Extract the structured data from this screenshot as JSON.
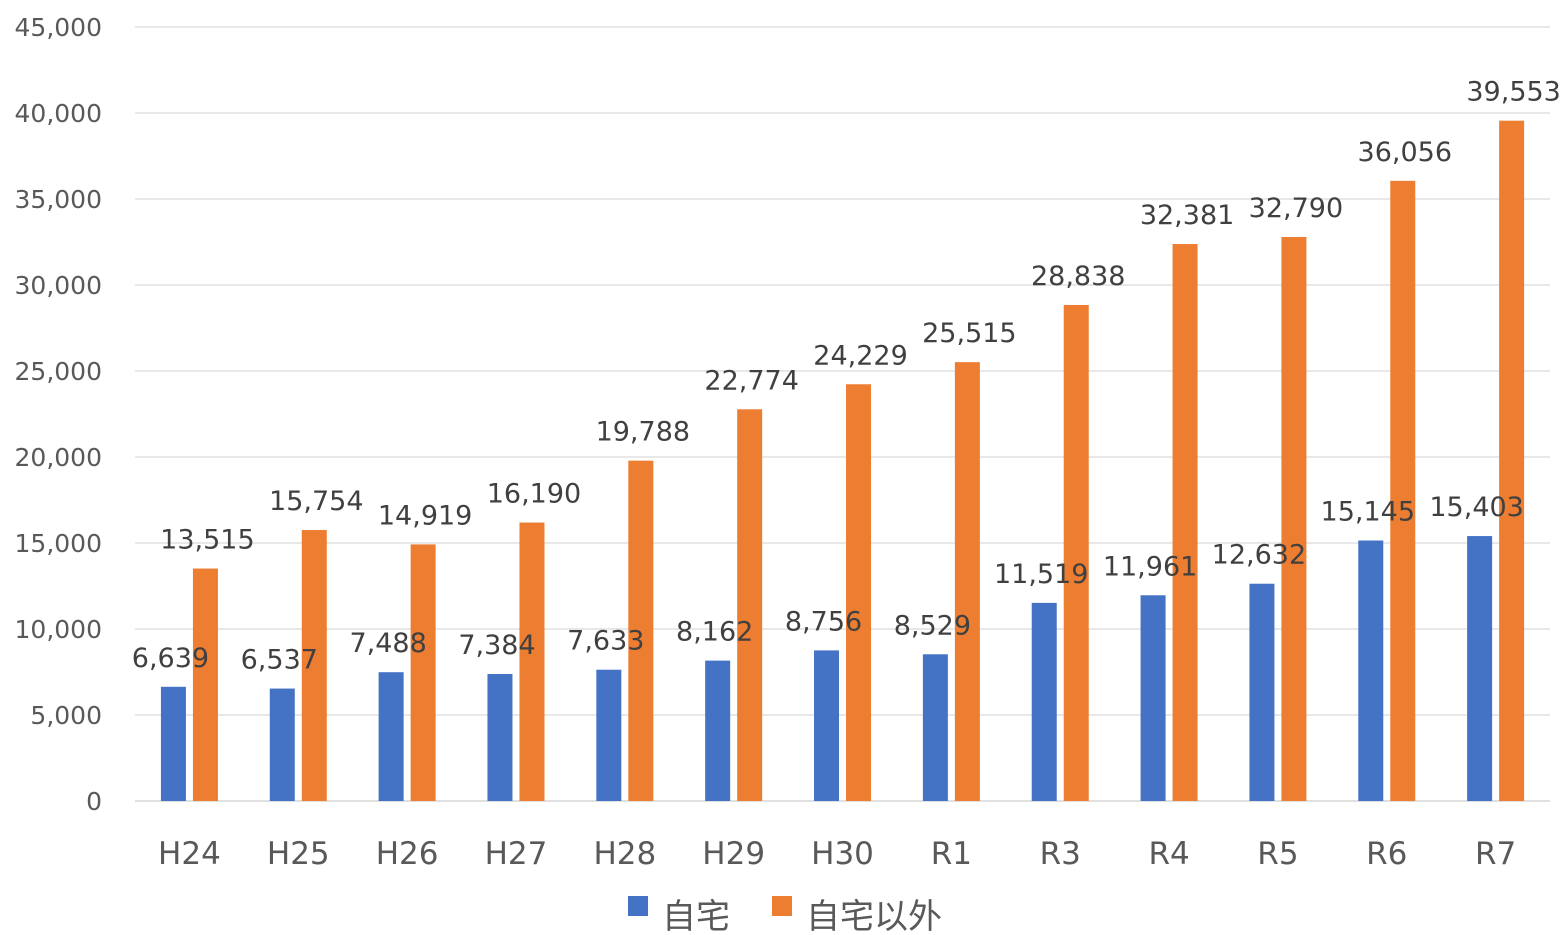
{
  "chart_data": {
    "type": "bar",
    "categories": [
      "H24",
      "H25",
      "H26",
      "H27",
      "H28",
      "H29",
      "H30",
      "R1",
      "R3",
      "R4",
      "R5",
      "R6",
      "R7"
    ],
    "series": [
      {
        "name": "自宅",
        "color": "#4472C4",
        "values": [
          6639,
          6537,
          7488,
          7384,
          7633,
          8162,
          8756,
          8529,
          11519,
          11961,
          12632,
          15145,
          15403
        ],
        "labels": [
          "6,639",
          "6,537",
          "7,488",
          "7,384",
          "7,633",
          "8,162",
          "8,756",
          "8,529",
          "11,519",
          "11,961",
          "12,632",
          "15,145",
          "15,403"
        ]
      },
      {
        "name": "自宅以外",
        "color": "#ED7D31",
        "values": [
          13515,
          15754,
          14919,
          16190,
          19788,
          22774,
          24229,
          25515,
          28838,
          32381,
          32790,
          36056,
          39553
        ],
        "labels": [
          "13,515",
          "15,754",
          "14,919",
          "16,190",
          "19,788",
          "22,774",
          "24,229",
          "25,515",
          "28,838",
          "32,381",
          "32,790",
          "36,056",
          "39,553"
        ]
      }
    ],
    "ylim": [
      0,
      45000
    ],
    "yticks": [
      0,
      5000,
      10000,
      15000,
      20000,
      25000,
      30000,
      35000,
      40000,
      45000
    ],
    "ytick_labels": [
      "0",
      "5,000",
      "10,000",
      "15,000",
      "20,000",
      "25,000",
      "30,000",
      "35,000",
      "40,000",
      "45,000"
    ],
    "grid": true,
    "legend_position": "bottom",
    "gridline_color": "#D9D9D9"
  }
}
